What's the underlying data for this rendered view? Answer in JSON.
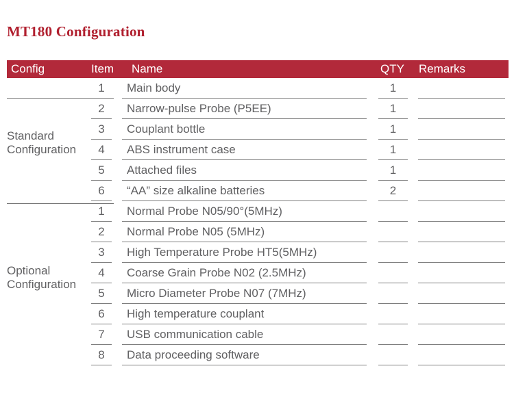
{
  "title": "MT180 Configuration",
  "colors": {
    "header_bg": "#b2293a",
    "title_red": "#b01f2e",
    "body_text": "#606062",
    "rule_line": "#7e7e7e"
  },
  "table": {
    "headers": [
      "Config",
      "Item",
      "Name",
      "QTY",
      "Remarks"
    ],
    "groups": [
      {
        "label_line1": "Standard",
        "label_line2": "Configuration"
      },
      {
        "label_line1": "Optional",
        "label_line2": "Configuration"
      }
    ],
    "rows": [
      {
        "config_group": "Standard",
        "item": "1",
        "name": "Main body",
        "qty": "1",
        "remarks": ""
      },
      {
        "config_group": "Standard",
        "item": "2",
        "name": "Narrow-pulse Probe (P5EE)",
        "qty": "1",
        "remarks": ""
      },
      {
        "config_group": "Standard",
        "item": "3",
        "name": "Couplant bottle",
        "qty": "1",
        "remarks": ""
      },
      {
        "config_group": "Standard",
        "item": "4",
        "name": "ABS instrument case",
        "qty": "1",
        "remarks": ""
      },
      {
        "config_group": "Standard",
        "item": "5",
        "name": "Attached files",
        "qty": "1",
        "remarks": ""
      },
      {
        "config_group": "Standard",
        "item": "6",
        "name": "“AA” size alkaline batteries",
        "qty": "2",
        "remarks": ""
      },
      {
        "config_group": "Optional",
        "item": "1",
        "name": "Normal Probe N05/90°(5MHz)",
        "qty": "",
        "remarks": ""
      },
      {
        "config_group": "Optional",
        "item": "2",
        "name": "Normal Probe N05 (5MHz)",
        "qty": "",
        "remarks": ""
      },
      {
        "config_group": "Optional",
        "item": "3",
        "name": "High Temperature Probe HT5(5MHz)",
        "qty": "",
        "remarks": ""
      },
      {
        "config_group": "Optional",
        "item": "4",
        "name": "Coarse Grain Probe N02 (2.5MHz)",
        "qty": "",
        "remarks": ""
      },
      {
        "config_group": "Optional",
        "item": "5",
        "name": "Micro Diameter Probe N07 (7MHz)",
        "qty": "",
        "remarks": ""
      },
      {
        "config_group": "Optional",
        "item": "6",
        "name": "High temperature couplant",
        "qty": "",
        "remarks": ""
      },
      {
        "config_group": "Optional",
        "item": "7",
        "name": "USB communication cable",
        "qty": "",
        "remarks": ""
      },
      {
        "config_group": "Optional",
        "item": "8",
        "name": "Data proceeding software",
        "qty": "",
        "remarks": ""
      }
    ]
  }
}
